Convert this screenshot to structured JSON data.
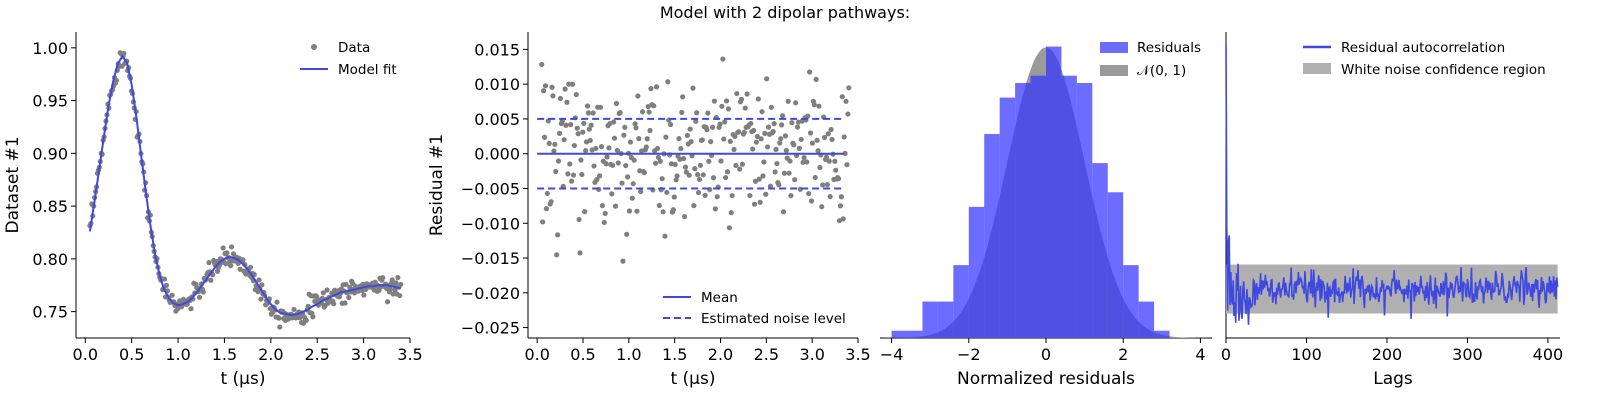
{
  "figure": {
    "title": "Model with 2 dipolar pathways:"
  },
  "colors": {
    "fit": "#3f48e0",
    "data": "#7f7f7f",
    "hist": "#5a5af5",
    "normal": "#9a9a9a",
    "overlap": "#3a3a9a"
  },
  "chart_data": [
    {
      "type": "scatter",
      "name": "dataset",
      "xlabel": "t (µs)",
      "ylabel": "Dataset #1",
      "xlim": [
        -0.1,
        3.5
      ],
      "ylim": [
        0.725,
        1.015
      ],
      "xticks": [
        0.0,
        0.5,
        1.0,
        1.5,
        2.0,
        2.5,
        3.0,
        3.5
      ],
      "yticks": [
        0.75,
        0.8,
        0.85,
        0.9,
        0.95,
        1.0
      ],
      "legend": [
        "Data",
        "Model fit"
      ],
      "fit_x": [
        0.05,
        0.1,
        0.15,
        0.2,
        0.25,
        0.3,
        0.35,
        0.4,
        0.45,
        0.5,
        0.55,
        0.6,
        0.65,
        0.7,
        0.75,
        0.8,
        0.85,
        0.9,
        0.95,
        1.0,
        1.05,
        1.1,
        1.15,
        1.2,
        1.25,
        1.3,
        1.35,
        1.4,
        1.45,
        1.5,
        1.55,
        1.6,
        1.65,
        1.7,
        1.75,
        1.8,
        1.85,
        1.9,
        1.95,
        2.0,
        2.05,
        2.1,
        2.15,
        2.2,
        2.25,
        2.3,
        2.35,
        2.4,
        2.45,
        2.5,
        2.55,
        2.6,
        2.65,
        2.7,
        2.75,
        2.8,
        2.85,
        2.9,
        2.95,
        3.0,
        3.05,
        3.1,
        3.15,
        3.2,
        3.25,
        3.3,
        3.35,
        3.4
      ],
      "fit_y": [
        0.826,
        0.855,
        0.885,
        0.915,
        0.945,
        0.968,
        0.985,
        0.992,
        0.986,
        0.965,
        0.935,
        0.9,
        0.865,
        0.833,
        0.805,
        0.785,
        0.771,
        0.763,
        0.758,
        0.756,
        0.757,
        0.759,
        0.763,
        0.768,
        0.774,
        0.78,
        0.786,
        0.792,
        0.797,
        0.8,
        0.802,
        0.801,
        0.799,
        0.795,
        0.79,
        0.784,
        0.777,
        0.77,
        0.763,
        0.757,
        0.752,
        0.749,
        0.748,
        0.747,
        0.747,
        0.748,
        0.75,
        0.752,
        0.755,
        0.757,
        0.76,
        0.762,
        0.764,
        0.766,
        0.768,
        0.769,
        0.77,
        0.771,
        0.772,
        0.773,
        0.774,
        0.774,
        0.775,
        0.775,
        0.775,
        0.774,
        0.773,
        0.772
      ]
    },
    {
      "type": "scatter",
      "name": "residuals",
      "xlabel": "t (µs)",
      "ylabel": "Residual #1",
      "xlim": [
        -0.1,
        3.5
      ],
      "ylim": [
        -0.0265,
        0.0175
      ],
      "xticks": [
        0.0,
        0.5,
        1.0,
        1.5,
        2.0,
        2.5,
        3.0,
        3.5
      ],
      "yticks": [
        0.015,
        0.01,
        0.005,
        0.0,
        -0.005,
        -0.01,
        -0.015,
        -0.02,
        -0.025
      ],
      "mean": 0.0,
      "noise_level": 0.005,
      "legend": [
        "Mean",
        "Estimated noise level"
      ]
    },
    {
      "type": "bar",
      "name": "histogram",
      "xlabel": "Normalized residuals",
      "xlim": [
        -4.3,
        4.3
      ],
      "xticks": [
        -4,
        -2,
        0,
        2,
        4
      ],
      "bin_edges": [
        -4.0,
        -3.6,
        -3.2,
        -2.8,
        -2.4,
        -2.0,
        -1.6,
        -1.2,
        -0.8,
        -0.4,
        0.0,
        0.4,
        0.8,
        1.2,
        1.6,
        2.0,
        2.4,
        2.8,
        3.2
      ],
      "density": [
        0.01,
        0.01,
        0.05,
        0.05,
        0.1,
        0.18,
        0.28,
        0.33,
        0.35,
        0.36,
        0.4,
        0.36,
        0.35,
        0.24,
        0.2,
        0.1,
        0.05,
        0.01
      ],
      "legend": [
        "Residuals",
        "𝒩(0, 1)"
      ]
    },
    {
      "type": "line",
      "name": "autocorrelation",
      "xlabel": "Lags",
      "xlim": [
        0,
        415
      ],
      "xticks": [
        0,
        100,
        200,
        300,
        400
      ],
      "ylim": [
        -0.2,
        1.05
      ],
      "confidence_band": [
        -0.1,
        0.1
      ],
      "legend": [
        "Residual autocorrelation",
        "White noise confidence region"
      ]
    }
  ]
}
